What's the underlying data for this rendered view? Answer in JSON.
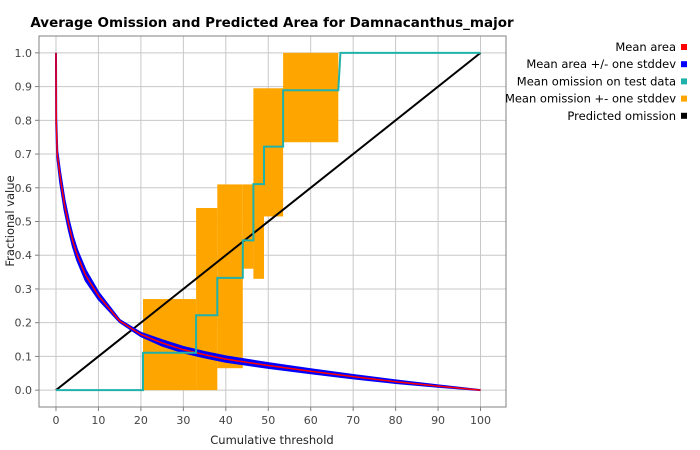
{
  "chart_data": {
    "type": "line",
    "title": "Average Omission and Predicted Area for Damnacanthus_major",
    "xlabel": "Cumulative threshold",
    "ylabel": "Fractional value",
    "xlim": [
      -4,
      106
    ],
    "ylim": [
      -0.05,
      1.05
    ],
    "x_ticks": [
      0,
      10,
      20,
      30,
      40,
      50,
      60,
      70,
      80,
      90,
      100
    ],
    "y_ticks": [
      0.0,
      0.1,
      0.2,
      0.3,
      0.4,
      0.5,
      0.6,
      0.7,
      0.8,
      0.9,
      1.0
    ],
    "x_tick_labels": [
      "0",
      "10",
      "20",
      "30",
      "40",
      "50",
      "60",
      "70",
      "80",
      "90",
      "100"
    ],
    "y_tick_labels": [
      "0.0",
      "0.1",
      "0.2",
      "0.3",
      "0.4",
      "0.5",
      "0.6",
      "0.7",
      "0.8",
      "0.9",
      "1.0"
    ],
    "grid": true,
    "legend_position": "right",
    "legend": [
      {
        "name": "Mean area",
        "color": "#ff0000"
      },
      {
        "name": "Mean area +/- one stddev",
        "color": "#0000ff"
      },
      {
        "name": "Mean omission on test data",
        "color": "#20b2aa"
      },
      {
        "name": "Mean omission +- one stddev",
        "color": "#ffa500"
      },
      {
        "name": "Predicted omission",
        "color": "#000000"
      }
    ],
    "series": [
      {
        "name": "Mean area",
        "color": "#ff0000",
        "x": [
          0,
          0.05,
          0.3,
          1,
          2,
          3,
          4,
          5,
          7,
          10,
          15,
          20,
          25,
          30,
          35,
          40,
          50,
          60,
          70,
          80,
          90,
          100
        ],
        "y": [
          1.0,
          0.8,
          0.7,
          0.63,
          0.55,
          0.49,
          0.44,
          0.4,
          0.34,
          0.28,
          0.205,
          0.165,
          0.14,
          0.12,
          0.105,
          0.092,
          0.073,
          0.056,
          0.04,
          0.025,
          0.012,
          0.0
        ]
      },
      {
        "name": "Mean area +/- one stddev",
        "color": "#0000ff",
        "x": [
          0,
          0.05,
          0.3,
          1,
          2,
          3,
          4,
          5,
          7,
          10,
          15,
          20,
          25,
          30,
          35,
          40,
          50,
          60,
          70,
          80,
          90,
          100
        ],
        "upper": [
          1.0,
          0.81,
          0.71,
          0.645,
          0.565,
          0.505,
          0.455,
          0.415,
          0.355,
          0.29,
          0.208,
          0.17,
          0.148,
          0.128,
          0.113,
          0.1,
          0.08,
          0.062,
          0.045,
          0.029,
          0.014,
          0.0
        ],
        "lower": [
          1.0,
          0.79,
          0.69,
          0.615,
          0.535,
          0.475,
          0.425,
          0.385,
          0.325,
          0.27,
          0.202,
          0.16,
          0.132,
          0.112,
          0.097,
          0.084,
          0.066,
          0.05,
          0.035,
          0.021,
          0.01,
          0.0
        ]
      },
      {
        "name": "Mean omission on test data",
        "color": "#20b2aa",
        "x": [
          0,
          20.5,
          20.5,
          33,
          33,
          38,
          38,
          44,
          44,
          46.5,
          46.5,
          49,
          49,
          53.5,
          53.5,
          66.5,
          67,
          100
        ],
        "y": [
          0,
          0,
          0.111,
          0.111,
          0.222,
          0.222,
          0.333,
          0.333,
          0.444,
          0.444,
          0.611,
          0.611,
          0.722,
          0.722,
          0.889,
          0.889,
          1.0,
          1.0
        ]
      },
      {
        "name": "Mean omission +- one stddev",
        "color": "#ffa500",
        "bands": [
          {
            "x0": 20.5,
            "x1": 33,
            "y0": 0.0,
            "y1": 0.27
          },
          {
            "x0": 33,
            "x1": 38,
            "y0": 0.0,
            "y1": 0.54
          },
          {
            "x0": 38,
            "x1": 44,
            "y0": 0.065,
            "y1": 0.61
          },
          {
            "x0": 44,
            "x1": 46.5,
            "y0": 0.36,
            "y1": 0.61
          },
          {
            "x0": 46.5,
            "x1": 49,
            "y0": 0.33,
            "y1": 0.895
          },
          {
            "x0": 49,
            "x1": 53.5,
            "y0": 0.515,
            "y1": 0.895
          },
          {
            "x0": 53.5,
            "x1": 66.5,
            "y0": 0.735,
            "y1": 1.0
          }
        ]
      },
      {
        "name": "Predicted omission",
        "color": "#000000",
        "x": [
          0,
          100
        ],
        "y": [
          0,
          1
        ]
      }
    ]
  }
}
